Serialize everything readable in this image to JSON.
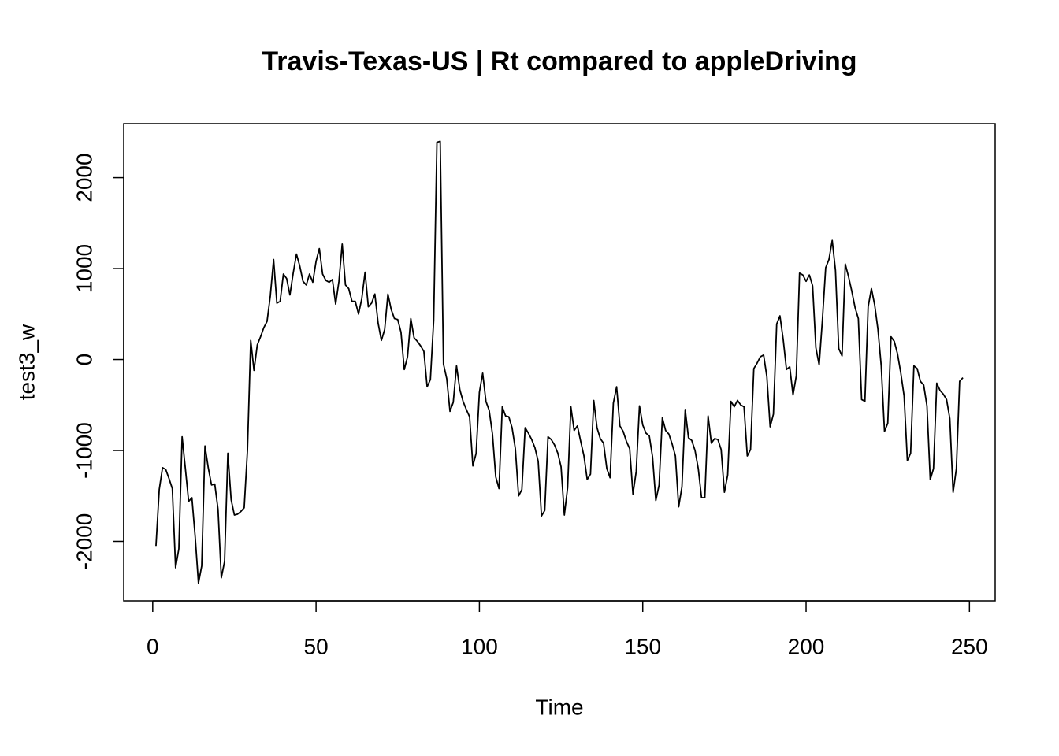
{
  "chart_data": {
    "type": "line",
    "title": "Travis-Texas-US | Rt compared to appleDriving",
    "x_label": "Time",
    "y_label": "test3_w",
    "x": [
      1,
      2,
      3,
      4,
      5,
      6,
      7,
      8,
      9,
      10,
      11,
      12,
      13,
      14,
      15,
      16,
      17,
      18,
      19,
      20,
      21,
      22,
      23,
      24,
      25,
      26,
      27,
      28,
      29,
      30,
      31,
      32,
      33,
      34,
      35,
      36,
      37,
      38,
      39,
      40,
      41,
      42,
      43,
      44,
      45,
      46,
      47,
      48,
      49,
      50,
      51,
      52,
      53,
      54,
      55,
      56,
      57,
      58,
      59,
      60,
      61,
      62,
      63,
      64,
      65,
      66,
      67,
      68,
      69,
      70,
      71,
      72,
      73,
      74,
      75,
      76,
      77,
      78,
      79,
      80,
      81,
      82,
      83,
      84,
      85,
      86,
      87,
      88,
      89,
      90,
      91,
      92,
      93,
      94,
      95,
      96,
      97,
      98,
      99,
      100,
      101,
      102,
      103,
      104,
      105,
      106,
      107,
      108,
      109,
      110,
      111,
      112,
      113,
      114,
      115,
      116,
      117,
      118,
      119,
      120,
      121,
      122,
      123,
      124,
      125,
      126,
      127,
      128,
      129,
      130,
      131,
      132,
      133,
      134,
      135,
      136,
      137,
      138,
      139,
      140,
      141,
      142,
      143,
      144,
      145,
      146,
      147,
      148,
      149,
      150,
      151,
      152,
      153,
      154,
      155,
      156,
      157,
      158,
      159,
      160,
      161,
      162,
      163,
      164,
      165,
      166,
      167,
      168,
      169,
      170,
      171,
      172,
      173,
      174,
      175,
      176,
      177,
      178,
      179,
      180,
      181,
      182,
      183,
      184,
      185,
      186,
      187,
      188,
      189,
      190,
      191,
      192,
      193,
      194,
      195,
      196,
      197,
      198,
      199,
      200,
      201,
      202,
      203,
      204,
      205,
      206,
      207,
      208,
      209,
      210,
      211,
      212,
      213,
      214,
      215,
      216,
      217,
      218,
      219,
      220,
      221,
      222,
      223,
      224,
      225,
      226,
      227,
      228,
      229,
      230,
      231,
      232,
      233,
      234,
      235,
      236,
      237,
      238,
      239,
      240,
      241,
      242,
      243,
      244,
      245,
      246,
      247,
      248
    ],
    "values": [
      -2050,
      -1430,
      -1190,
      -1210,
      -1310,
      -1420,
      -2290,
      -2080,
      -850,
      -1200,
      -1560,
      -1520,
      -1950,
      -2460,
      -2270,
      -950,
      -1190,
      -1380,
      -1370,
      -1650,
      -2400,
      -2220,
      -1030,
      -1540,
      -1710,
      -1700,
      -1670,
      -1630,
      -1000,
      210,
      -120,
      160,
      250,
      350,
      420,
      700,
      1100,
      620,
      640,
      940,
      890,
      710,
      950,
      1160,
      1030,
      860,
      820,
      940,
      850,
      1080,
      1220,
      940,
      870,
      850,
      880,
      610,
      860,
      1270,
      820,
      780,
      640,
      640,
      500,
      670,
      960,
      580,
      620,
      720,
      400,
      210,
      330,
      720,
      550,
      450,
      440,
      300,
      -110,
      30,
      450,
      240,
      200,
      150,
      90,
      -300,
      -220,
      430,
      2390,
      2400,
      -50,
      -210,
      -570,
      -470,
      -70,
      -330,
      -460,
      -550,
      -630,
      -1170,
      -1030,
      -360,
      -150,
      -460,
      -560,
      -820,
      -1290,
      -1420,
      -520,
      -620,
      -630,
      -750,
      -980,
      -1500,
      -1430,
      -750,
      -810,
      -880,
      -970,
      -1120,
      -1720,
      -1660,
      -850,
      -880,
      -940,
      -1030,
      -1180,
      -1710,
      -1410,
      -520,
      -780,
      -730,
      -900,
      -1060,
      -1320,
      -1260,
      -450,
      -750,
      -870,
      -920,
      -1200,
      -1300,
      -480,
      -300,
      -730,
      -790,
      -900,
      -980,
      -1480,
      -1230,
      -510,
      -720,
      -810,
      -840,
      -1070,
      -1550,
      -1380,
      -640,
      -780,
      -820,
      -930,
      -1060,
      -1620,
      -1400,
      -550,
      -860,
      -890,
      -1000,
      -1200,
      -1520,
      -1520,
      -620,
      -920,
      -870,
      -880,
      -990,
      -1460,
      -1270,
      -460,
      -520,
      -450,
      -500,
      -520,
      -1060,
      -990,
      -100,
      -40,
      30,
      50,
      -190,
      -740,
      -600,
      390,
      480,
      220,
      -110,
      -80,
      -390,
      -180,
      950,
      930,
      860,
      930,
      810,
      130,
      -60,
      440,
      1010,
      1100,
      1310,
      980,
      120,
      40,
      1050,
      910,
      750,
      570,
      450,
      -440,
      -460,
      580,
      780,
      600,
      330,
      -70,
      -790,
      -700,
      250,
      200,
      60,
      -150,
      -400,
      -1110,
      -1030,
      -70,
      -100,
      -240,
      -280,
      -510,
      -1320,
      -1200,
      -260,
      -340,
      -380,
      -440,
      -650,
      -1460,
      -1200,
      -240,
      -200
    ],
    "color": "#000000",
    "xlim": [
      -8.88,
      257.88
    ],
    "xticks": [
      0,
      50,
      100,
      150,
      200,
      250
    ],
    "ylim": [
      -2654,
      2594
    ],
    "yticks": [
      -2000,
      -1000,
      0,
      1000,
      2000
    ]
  }
}
